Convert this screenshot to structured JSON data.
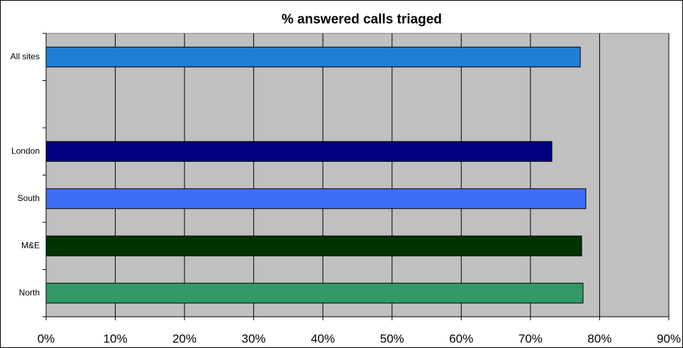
{
  "chart_data": {
    "type": "bar",
    "orientation": "horizontal",
    "title": "% answered calls triaged",
    "categories": [
      "All sites",
      null,
      "London",
      "South",
      "M&E",
      "North"
    ],
    "values": [
      77.2,
      null,
      73.1,
      78.0,
      77.4,
      77.6
    ],
    "colors": [
      "#1f7ed6",
      null,
      "#000080",
      "#3d6ff5",
      "#003300",
      "#339966"
    ],
    "xlim": [
      0,
      90
    ],
    "xticks": [
      {
        "value": 0,
        "label": "0%"
      },
      {
        "value": 10,
        "label": "10%"
      },
      {
        "value": 20,
        "label": "20%"
      },
      {
        "value": 30,
        "label": "30%"
      },
      {
        "value": 40,
        "label": "40%"
      },
      {
        "value": 50,
        "label": "50%"
      },
      {
        "value": 60,
        "label": "60%"
      },
      {
        "value": 70,
        "label": "70%"
      },
      {
        "value": 80,
        "label": "80%"
      },
      {
        "value": 90,
        "label": "90%"
      }
    ],
    "grid": true
  }
}
